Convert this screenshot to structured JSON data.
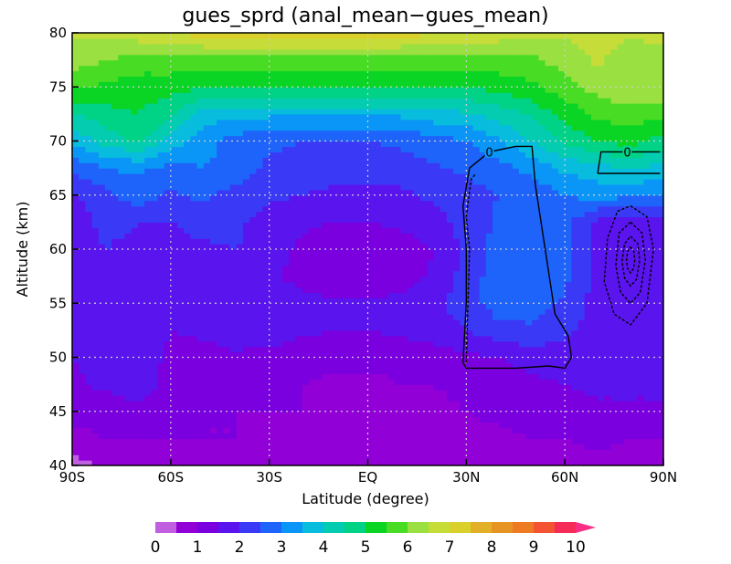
{
  "chart_data": {
    "type": "heatmap",
    "title": "gues_sprd (anal_mean−gues_mean)",
    "xlabel": "Latitude (degree)",
    "ylabel": "Altitude (km)",
    "xlim": [
      -90,
      90
    ],
    "ylim": [
      40,
      80
    ],
    "x_ticks": [
      {
        "value": -90,
        "label": "90S"
      },
      {
        "value": -60,
        "label": "60S"
      },
      {
        "value": -30,
        "label": "30S"
      },
      {
        "value": 0,
        "label": "EQ"
      },
      {
        "value": 30,
        "label": "30N"
      },
      {
        "value": 60,
        "label": "60N"
      },
      {
        "value": 90,
        "label": "90N"
      }
    ],
    "y_ticks": [
      {
        "value": 40,
        "label": "40"
      },
      {
        "value": 45,
        "label": "45"
      },
      {
        "value": 50,
        "label": "50"
      },
      {
        "value": 55,
        "label": "55"
      },
      {
        "value": 60,
        "label": "60"
      },
      {
        "value": 65,
        "label": "65"
      },
      {
        "value": 70,
        "label": "70"
      },
      {
        "value": 75,
        "label": "75"
      },
      {
        "value": 80,
        "label": "80"
      }
    ],
    "grid": true,
    "colorbar": {
      "placement": "bottom",
      "min": 0,
      "max": 10,
      "step": 0.5,
      "extend": "max",
      "tick_labels": [
        "0",
        "1",
        "2",
        "3",
        "4",
        "5",
        "6",
        "7",
        "8",
        "9",
        "10"
      ],
      "colors": [
        "#c060e0",
        "#9200d8",
        "#7a00e0",
        "#5a14ee",
        "#3a3af6",
        "#1e64fa",
        "#0a96f6",
        "#08bcde",
        "#04ccb0",
        "#00d286",
        "#0ad424",
        "#48dc24",
        "#9ae040",
        "#c6dc38",
        "#dad02c",
        "#e2b028",
        "#e69424",
        "#ee7a24",
        "#f45434",
        "#f62c58",
        "#fa2e84"
      ]
    },
    "grid_x": [
      -90,
      -80,
      -70,
      -60,
      -50,
      -40,
      -30,
      -20,
      -10,
      0,
      10,
      20,
      30,
      40,
      50,
      60,
      70,
      80,
      90
    ],
    "grid_y": [
      40,
      42.5,
      45,
      47.5,
      50,
      52.5,
      55,
      57.5,
      60,
      62.5,
      65,
      67.5,
      70,
      72.5,
      75,
      77.5,
      80
    ],
    "values": [
      [
        0.3,
        0.6,
        0.8,
        0.9,
        0.8,
        0.8,
        0.8,
        0.7,
        0.7,
        0.6,
        0.6,
        0.7,
        0.6,
        0.5,
        0.6,
        0.8,
        0.9,
        0.8,
        0.8
      ],
      [
        0.8,
        1.0,
        1.0,
        1.0,
        1.0,
        1.0,
        0.9,
        0.9,
        0.8,
        0.8,
        0.8,
        0.9,
        0.9,
        0.9,
        1.0,
        1.0,
        1.1,
        1.0,
        1.0
      ],
      [
        1.2,
        1.2,
        1.3,
        1.1,
        1.0,
        1.0,
        1.0,
        1.0,
        0.9,
        0.9,
        0.9,
        0.9,
        1.0,
        1.1,
        1.2,
        1.3,
        1.4,
        1.4,
        1.4
      ],
      [
        1.4,
        1.6,
        1.8,
        1.3,
        1.2,
        1.2,
        1.1,
        1.0,
        0.9,
        0.9,
        1.0,
        1.0,
        1.1,
        1.2,
        1.4,
        1.5,
        1.6,
        1.6,
        1.6
      ],
      [
        1.5,
        1.8,
        1.8,
        1.4,
        1.3,
        1.4,
        1.3,
        1.2,
        1.1,
        1.1,
        1.1,
        1.2,
        1.4,
        1.5,
        1.7,
        1.7,
        1.7,
        1.8,
        1.8
      ],
      [
        1.5,
        1.9,
        1.8,
        1.5,
        1.6,
        1.8,
        1.8,
        1.6,
        1.5,
        1.5,
        1.6,
        1.8,
        2.0,
        2.3,
        2.4,
        2.1,
        1.8,
        1.8,
        1.8
      ],
      [
        1.6,
        2.0,
        1.9,
        1.6,
        1.8,
        2.0,
        1.9,
        1.7,
        1.6,
        1.6,
        1.7,
        1.9,
        2.2,
        2.8,
        2.8,
        2.4,
        1.8,
        1.6,
        1.6
      ],
      [
        1.6,
        2.0,
        1.9,
        1.7,
        1.9,
        2.0,
        1.6,
        1.3,
        1.1,
        1.0,
        1.2,
        1.6,
        2.2,
        2.8,
        3.0,
        2.6,
        1.8,
        1.6,
        1.6
      ],
      [
        1.7,
        2.0,
        1.9,
        1.8,
        1.9,
        2.0,
        1.7,
        1.4,
        1.1,
        1.0,
        1.2,
        1.5,
        2.1,
        2.7,
        2.9,
        2.7,
        1.7,
        1.5,
        1.6
      ],
      [
        1.8,
        2.1,
        2.0,
        2.0,
        2.2,
        2.1,
        1.8,
        1.6,
        1.5,
        1.5,
        1.6,
        1.8,
        2.2,
        2.6,
        2.8,
        2.7,
        1.8,
        1.7,
        1.9
      ],
      [
        1.9,
        2.3,
        2.8,
        2.4,
        2.6,
        2.3,
        2.1,
        2.0,
        1.9,
        1.9,
        1.9,
        2.1,
        2.3,
        2.5,
        2.6,
        3.0,
        3.2,
        3.1,
        3.0
      ],
      [
        2.6,
        3.0,
        3.1,
        2.8,
        3.0,
        2.8,
        2.4,
        2.2,
        2.2,
        2.2,
        2.2,
        2.4,
        2.6,
        2.8,
        3.2,
        3.6,
        3.8,
        4.0,
        3.8
      ],
      [
        3.6,
        4.2,
        4.6,
        3.8,
        3.2,
        2.8,
        2.6,
        2.5,
        2.5,
        2.5,
        2.6,
        2.8,
        3.0,
        3.4,
        4.0,
        4.6,
        5.0,
        5.2,
        4.8
      ],
      [
        4.4,
        4.8,
        5.0,
        4.6,
        3.8,
        3.6,
        3.6,
        3.6,
        3.6,
        3.6,
        3.6,
        3.8,
        3.9,
        4.2,
        4.6,
        5.2,
        5.6,
        5.8,
        5.6
      ],
      [
        5.6,
        5.4,
        5.2,
        5.2,
        5.0,
        5.0,
        5.0,
        5.0,
        5.0,
        5.0,
        5.0,
        5.0,
        5.0,
        5.2,
        5.4,
        5.8,
        6.2,
        6.4,
        6.4
      ],
      [
        6.2,
        6.0,
        5.8,
        5.8,
        5.8,
        5.8,
        5.8,
        5.8,
        5.8,
        5.8,
        5.8,
        5.8,
        5.8,
        5.8,
        5.9,
        6.2,
        6.6,
        6.2,
        6.4
      ],
      [
        6.6,
        6.6,
        6.8,
        7.0,
        7.2,
        7.2,
        7.2,
        7.2,
        7.2,
        7.2,
        7.2,
        7.1,
        7.0,
        6.8,
        6.6,
        6.6,
        6.6,
        6.6,
        6.6
      ]
    ],
    "contour_lines": [
      {
        "label": "0",
        "label_at": [
          37,
          69
        ],
        "points": [
          [
            29,
            49.5
          ],
          [
            30,
            55
          ],
          [
            30,
            60
          ],
          [
            29,
            64
          ],
          [
            31,
            67.5
          ],
          [
            33,
            68
          ],
          [
            37,
            69
          ],
          [
            45,
            69.5
          ],
          [
            50,
            69.5
          ],
          [
            51,
            66
          ],
          [
            53,
            62
          ],
          [
            55,
            58
          ],
          [
            57,
            54
          ],
          [
            58,
            53.5
          ],
          [
            61,
            52
          ],
          [
            62,
            50
          ],
          [
            60,
            49
          ],
          [
            55,
            49.2
          ],
          [
            45,
            49
          ],
          [
            35,
            49
          ],
          [
            30,
            49
          ],
          [
            29,
            49.5
          ]
        ]
      },
      {
        "label": "0",
        "label_at": [
          79,
          69
        ],
        "points": [
          [
            70,
            67
          ],
          [
            71,
            69
          ],
          [
            75,
            69
          ],
          [
            79,
            69
          ],
          [
            84,
            69
          ],
          [
            89,
            69
          ]
        ]
      },
      {
        "label": "",
        "points": [
          [
            70,
            67
          ],
          [
            75,
            67
          ],
          [
            80,
            67
          ],
          [
            85,
            67
          ],
          [
            89,
            67
          ]
        ]
      },
      {
        "label": "",
        "dashed": true,
        "points": [
          [
            80,
            64
          ],
          [
            85,
            63
          ],
          [
            87,
            60
          ],
          [
            85,
            55
          ],
          [
            80,
            53
          ],
          [
            75,
            54
          ],
          [
            72,
            57
          ],
          [
            73,
            61
          ],
          [
            76,
            63.5
          ],
          [
            80,
            64
          ]
        ]
      },
      {
        "label": "",
        "dashed": true,
        "points": [
          [
            80,
            62.5
          ],
          [
            83.5,
            61.5
          ],
          [
            84.5,
            59
          ],
          [
            83,
            56
          ],
          [
            80,
            55
          ],
          [
            77,
            56
          ],
          [
            75.5,
            58.5
          ],
          [
            76.5,
            61.5
          ],
          [
            80,
            62.5
          ]
        ]
      },
      {
        "label": "",
        "dashed": true,
        "points": [
          [
            80,
            61.2
          ],
          [
            82.2,
            60.5
          ],
          [
            82.8,
            59
          ],
          [
            81.8,
            57.2
          ],
          [
            80,
            56.6
          ],
          [
            78.2,
            57.3
          ],
          [
            77.4,
            58.9
          ],
          [
            78.2,
            60.5
          ],
          [
            80,
            61.2
          ]
        ]
      },
      {
        "label": "",
        "dashed": true,
        "points": [
          [
            80,
            60.2
          ],
          [
            81,
            59.8
          ],
          [
            81.3,
            59
          ],
          [
            80.9,
            58.2
          ],
          [
            80,
            57.8
          ],
          [
            79.1,
            58.2
          ],
          [
            78.8,
            59
          ],
          [
            79.1,
            59.8
          ],
          [
            80,
            60.2
          ]
        ]
      },
      {
        "label": "",
        "dashed": true,
        "points": [
          [
            30,
            49.5
          ],
          [
            30.5,
            55
          ],
          [
            31,
            60
          ],
          [
            30,
            63
          ],
          [
            31.5,
            66.5
          ],
          [
            33,
            67
          ]
        ]
      }
    ]
  }
}
